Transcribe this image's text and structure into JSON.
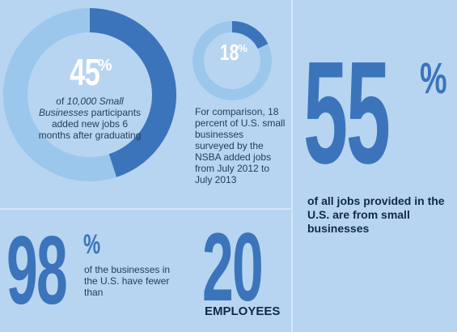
{
  "colors": {
    "background": "#b7d5f0",
    "donut_light": "#9cc7ec",
    "donut_dark": "#3b74ba",
    "accent_blue": "#3b74ba",
    "dark_text": "#0f2a48"
  },
  "stat_graduates": {
    "value": "45",
    "symbol": "%",
    "fraction": 0.45,
    "text_italic": "10,000 Small Businesses",
    "text_prefix": "of ",
    "text_suffix": " participants added new jobs 6 months after graduating"
  },
  "stat_comparison": {
    "value": "18",
    "symbol": "%",
    "fraction": 0.18,
    "text": "For comparison, 18 percent of U.S. small businesses surveyed by the NSBA added jobs from July 2012 to July 2013"
  },
  "stat_jobs": {
    "value": "55",
    "symbol": "%",
    "text": "of all jobs provided in the U.S. are from small businesses"
  },
  "stat_businesses": {
    "value": "98",
    "symbol": "%",
    "text": "of the businesses in the U.S. have fewer than"
  },
  "stat_employees": {
    "value": "20",
    "label": "EMPLOYEES"
  }
}
